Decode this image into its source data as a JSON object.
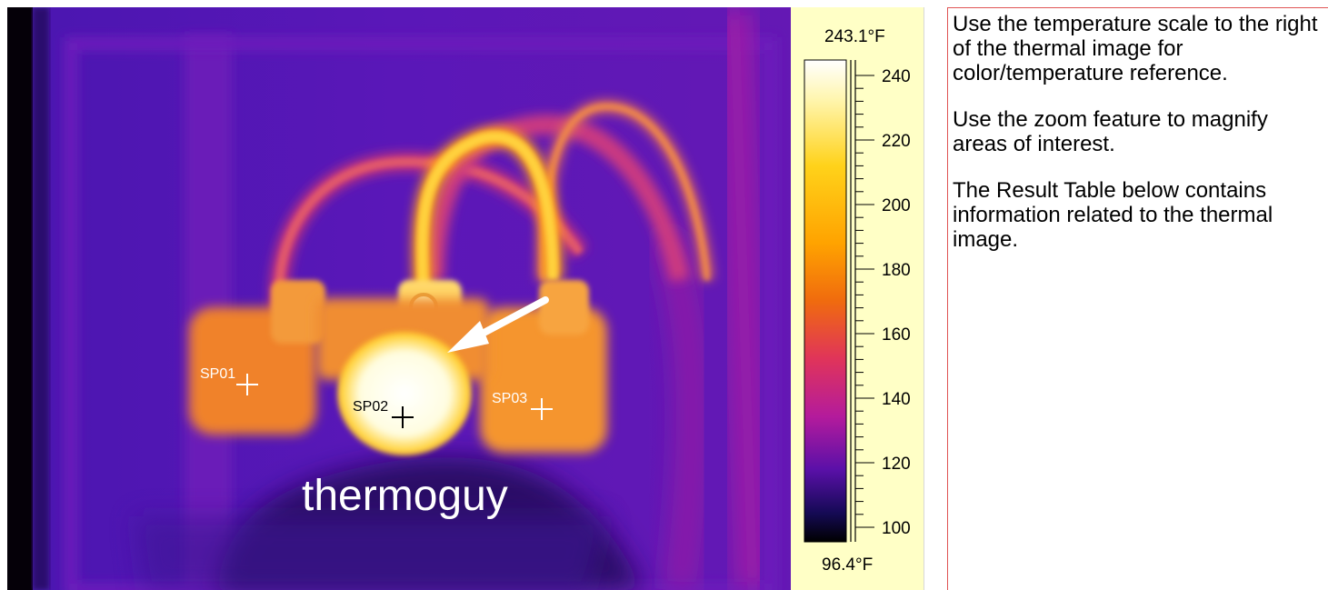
{
  "thermal_image": {
    "watermark": "thermoguy",
    "spots": [
      {
        "label": "SP01",
        "color": "#ffffff"
      },
      {
        "label": "SP02",
        "color": "#000000"
      },
      {
        "label": "SP03",
        "color": "#ffffff"
      }
    ],
    "arrow_color": "#ffffff"
  },
  "temperature_scale": {
    "max_label": "243.1°F",
    "min_label": "96.4°F",
    "ticks": [
      "240",
      "220",
      "200",
      "180",
      "160",
      "140",
      "120",
      "100"
    ],
    "gradient_colors": [
      "#ffffff",
      "#fff6b0",
      "#ffd21a",
      "#ffa300",
      "#f06b0e",
      "#e0345a",
      "#b41b9c",
      "#5a10a8",
      "#150a55",
      "#000000"
    ],
    "background": "#ffffc6"
  },
  "info_panel": {
    "paragraphs": [
      "Use the temperature scale to the right of the thermal image for color/temperature reference.",
      "Use the zoom feature to magnify areas of interest.",
      "The Result Table below contains information related to the thermal image."
    ],
    "border_color": "#e05555"
  }
}
